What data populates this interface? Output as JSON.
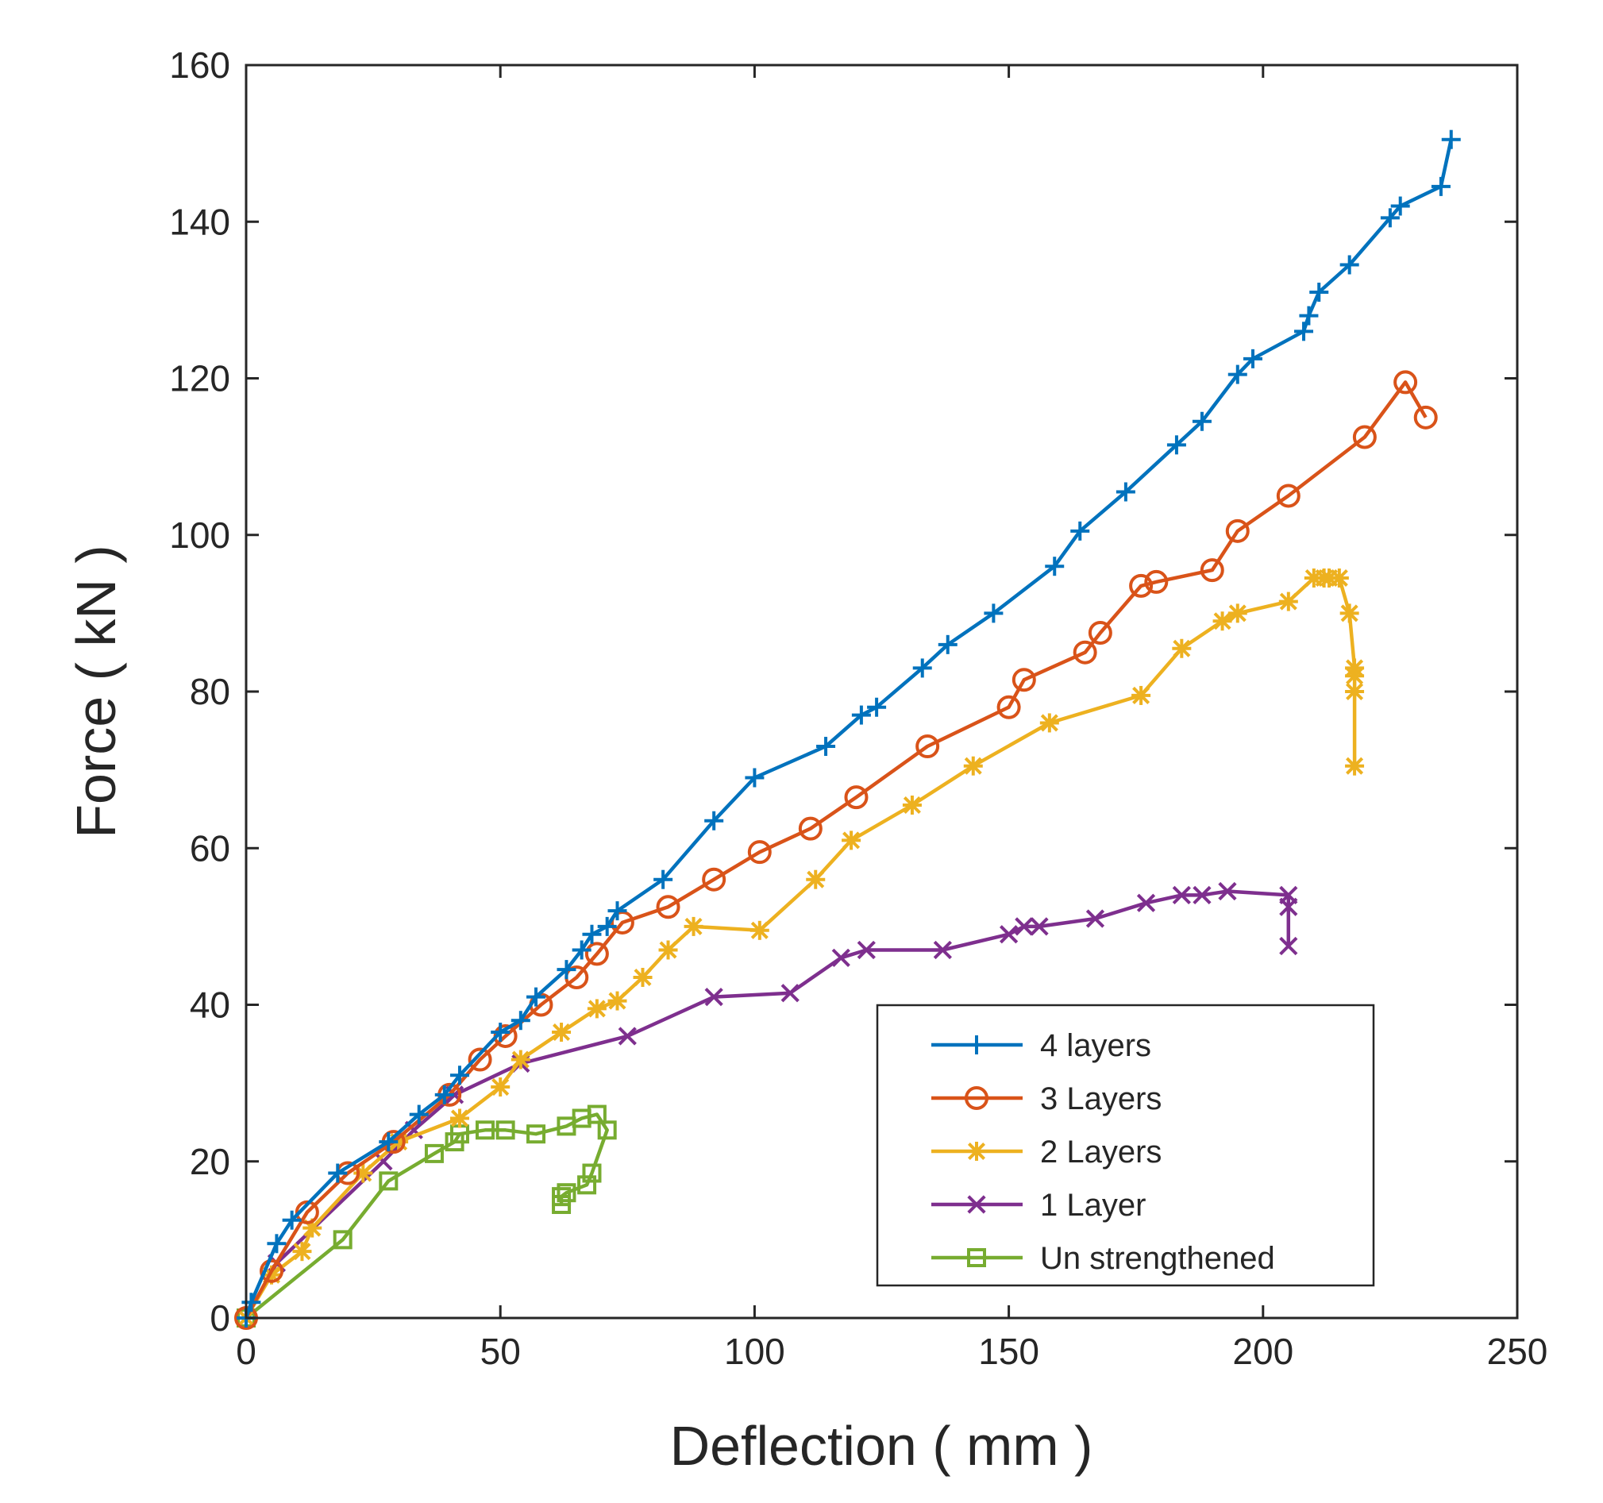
{
  "chart_data": {
    "type": "line",
    "title": "",
    "xlabel": "Deflection ( mm )",
    "ylabel": "Force ( kN )",
    "xlim": [
      0,
      250
    ],
    "ylim": [
      0,
      160
    ],
    "xticks": [
      0,
      50,
      100,
      150,
      200,
      250
    ],
    "yticks": [
      0,
      20,
      40,
      60,
      80,
      100,
      120,
      140,
      160
    ],
    "xtick_labels": [
      "0",
      "50",
      "100",
      "150",
      "200",
      "250"
    ],
    "ytick_labels": [
      "0",
      "20",
      "40",
      "60",
      "80",
      "100",
      "120",
      "140",
      "160"
    ],
    "grid": false,
    "legend_position": "bottom-right",
    "series": [
      {
        "name": "4 layers",
        "color": "#0072BD",
        "marker": "plus",
        "points": [
          [
            0,
            0
          ],
          [
            1,
            2
          ],
          [
            6,
            9.5
          ],
          [
            9,
            12.5
          ],
          [
            18,
            18.5
          ],
          [
            28,
            22.5
          ],
          [
            34,
            26
          ],
          [
            39,
            28.5
          ],
          [
            42,
            31
          ],
          [
            50,
            36.5
          ],
          [
            54,
            38
          ],
          [
            57,
            41
          ],
          [
            63,
            44.5
          ],
          [
            66,
            47
          ],
          [
            68,
            49
          ],
          [
            71,
            50
          ],
          [
            73,
            52
          ],
          [
            82,
            56
          ],
          [
            92,
            63.5
          ],
          [
            100,
            69
          ],
          [
            114,
            73
          ],
          [
            121,
            77
          ],
          [
            124,
            78
          ],
          [
            133,
            83
          ],
          [
            138,
            86
          ],
          [
            147,
            90
          ],
          [
            159,
            96
          ],
          [
            164,
            100.5
          ],
          [
            173,
            105.5
          ],
          [
            183,
            111.5
          ],
          [
            188,
            114.5
          ],
          [
            195,
            120.5
          ],
          [
            198,
            122.5
          ],
          [
            208,
            126
          ],
          [
            209,
            128
          ],
          [
            211,
            131
          ],
          [
            217,
            134.5
          ],
          [
            225,
            140.5
          ],
          [
            227,
            142
          ],
          [
            235,
            144.5
          ],
          [
            237,
            150.5
          ]
        ]
      },
      {
        "name": "3 Layers",
        "color": "#D95319",
        "marker": "circle",
        "points": [
          [
            0,
            0
          ],
          [
            5,
            6
          ],
          [
            12,
            13.5
          ],
          [
            20,
            18.5
          ],
          [
            29,
            22.5
          ],
          [
            40,
            28.5
          ],
          [
            46,
            33
          ],
          [
            51,
            36
          ],
          [
            58,
            40
          ],
          [
            65,
            43.5
          ],
          [
            69,
            46.5
          ],
          [
            74,
            50.5
          ],
          [
            83,
            52.5
          ],
          [
            92,
            56
          ],
          [
            101,
            59.5
          ],
          [
            111,
            62.5
          ],
          [
            120,
            66.5
          ],
          [
            134,
            73
          ],
          [
            150,
            78
          ],
          [
            153,
            81.5
          ],
          [
            165,
            85
          ],
          [
            168,
            87.5
          ],
          [
            176,
            93.5
          ],
          [
            179,
            94
          ],
          [
            190,
            95.5
          ],
          [
            195,
            100.5
          ],
          [
            205,
            105
          ],
          [
            220,
            112.5
          ],
          [
            228,
            119.5
          ],
          [
            232,
            115
          ]
        ]
      },
      {
        "name": "2 Layers",
        "color": "#EDB120",
        "marker": "asterisk",
        "points": [
          [
            0,
            0
          ],
          [
            5,
            5.5
          ],
          [
            11,
            8.5
          ],
          [
            13,
            11.5
          ],
          [
            23,
            18.5
          ],
          [
            30,
            22.5
          ],
          [
            42,
            25.5
          ],
          [
            50,
            29.5
          ],
          [
            54,
            33
          ],
          [
            62,
            36.5
          ],
          [
            69,
            39.5
          ],
          [
            73,
            40.5
          ],
          [
            78,
            43.5
          ],
          [
            83,
            47
          ],
          [
            88,
            50
          ],
          [
            101,
            49.5
          ],
          [
            112,
            56
          ],
          [
            119,
            61
          ],
          [
            131,
            65.5
          ],
          [
            143,
            70.5
          ],
          [
            158,
            76
          ],
          [
            176,
            79.5
          ],
          [
            184,
            85.5
          ],
          [
            192,
            89
          ],
          [
            195,
            90
          ],
          [
            205,
            91.5
          ],
          [
            210,
            94.5
          ],
          [
            212,
            94.5
          ],
          [
            213,
            94.5
          ],
          [
            215,
            94.5
          ],
          [
            217,
            90
          ],
          [
            218,
            83
          ],
          [
            218,
            82
          ],
          [
            218,
            80
          ],
          [
            218,
            70.5
          ]
        ]
      },
      {
        "name": "1 Layer",
        "color": "#7E2F8E",
        "marker": "x",
        "points": [
          [
            0,
            0
          ],
          [
            6,
            7
          ],
          [
            27,
            20
          ],
          [
            33,
            24
          ],
          [
            41,
            28.5
          ],
          [
            54,
            32.5
          ],
          [
            75,
            36
          ],
          [
            92,
            41
          ],
          [
            107,
            41.5
          ],
          [
            117,
            46
          ],
          [
            122,
            47
          ],
          [
            137,
            47
          ],
          [
            150,
            49
          ],
          [
            153,
            50
          ],
          [
            156,
            50
          ],
          [
            167,
            51
          ],
          [
            177,
            53
          ],
          [
            184,
            54
          ],
          [
            188,
            54
          ],
          [
            193,
            54.5
          ],
          [
            205,
            54
          ],
          [
            205,
            52.5
          ],
          [
            205,
            47.5
          ]
        ]
      },
      {
        "name": "Un strengthened",
        "color": "#77AC30",
        "marker": "square",
        "points": [
          [
            0,
            0
          ],
          [
            19,
            10
          ],
          [
            28,
            17.5
          ],
          [
            37,
            21
          ],
          [
            41,
            22.5
          ],
          [
            42,
            23.5
          ],
          [
            47,
            24
          ],
          [
            51,
            24
          ],
          [
            57,
            23.5
          ],
          [
            63,
            24.5
          ],
          [
            66,
            25.5
          ],
          [
            69,
            26
          ],
          [
            71,
            24
          ],
          [
            68,
            18.5
          ],
          [
            67,
            17
          ],
          [
            63,
            16
          ],
          [
            62,
            15.5
          ],
          [
            62,
            14.5
          ]
        ]
      }
    ]
  }
}
